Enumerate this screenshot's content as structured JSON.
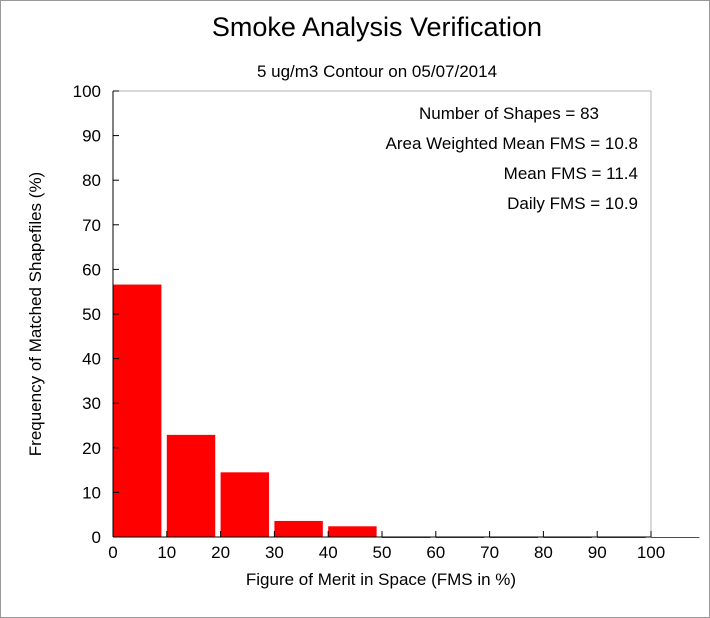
{
  "chart_data": {
    "type": "bar",
    "title": "Smoke Analysis Verification",
    "subtitle": "5 ug/m3 Contour on 05/07/2014",
    "xlabel": "Figure of Merit in Space (FMS in %)",
    "ylabel": "Frequency of Matched Shapefiles (%)",
    "xlim": [
      0,
      100
    ],
    "ylim": [
      0,
      100
    ],
    "x_ticks": [
      "0",
      "10",
      "20",
      "30",
      "40",
      "50",
      "60",
      "70",
      "80",
      "90",
      "100"
    ],
    "y_ticks": [
      "0",
      "10",
      "20",
      "30",
      "40",
      "50",
      "60",
      "70",
      "80",
      "90",
      "100"
    ],
    "bins": [
      {
        "start": 0,
        "end": 9,
        "value": 56.6
      },
      {
        "start": 10,
        "end": 19,
        "value": 22.9
      },
      {
        "start": 20,
        "end": 29,
        "value": 14.5
      },
      {
        "start": 30,
        "end": 39,
        "value": 3.6
      },
      {
        "start": 40,
        "end": 49,
        "value": 2.4
      },
      {
        "start": 50,
        "end": 59,
        "value": 0
      },
      {
        "start": 60,
        "end": 69,
        "value": 0
      },
      {
        "start": 70,
        "end": 79,
        "value": 0
      },
      {
        "start": 80,
        "end": 89,
        "value": 0
      },
      {
        "start": 90,
        "end": 99,
        "value": 0
      },
      {
        "start": 100,
        "end": 109,
        "value": 0
      }
    ],
    "bar_color": "#ff0000",
    "grid": false,
    "stats": [
      "Number of Shapes = 83",
      "Area Weighted Mean FMS = 10.8",
      "Mean FMS = 11.4",
      "Daily FMS = 10.9"
    ]
  }
}
